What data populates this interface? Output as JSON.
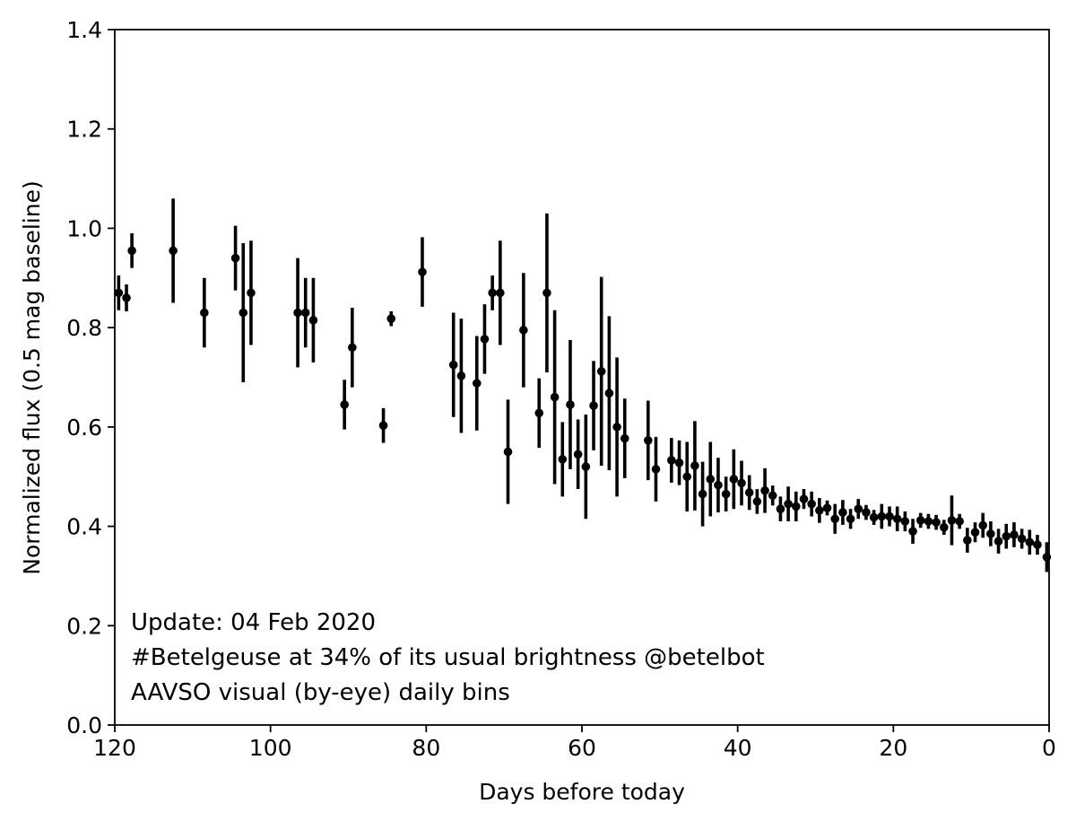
{
  "chart_data": {
    "type": "scatter",
    "title": "",
    "xlabel": "Days before today",
    "ylabel": "Normalized flux (0.5 mag baseline)",
    "xlim": [
      120,
      0
    ],
    "ylim": [
      0.0,
      1.4
    ],
    "x_inverted": true,
    "x_ticks": [
      120,
      100,
      80,
      60,
      40,
      20,
      0
    ],
    "y_ticks": [
      0.0,
      0.2,
      0.4,
      0.6,
      0.8,
      1.0,
      1.2,
      1.4
    ],
    "x_tick_labels": [
      "120",
      "100",
      "80",
      "60",
      "40",
      "20",
      "0"
    ],
    "y_tick_labels": [
      "0.0",
      "0.2",
      "0.4",
      "0.6",
      "0.8",
      "1.0",
      "1.2",
      "1.4"
    ],
    "grid": false,
    "marker_color": "#000000",
    "annotations": [
      "Update: 04 Feb 2020",
      "#Betelgeuse at 34% of its usual brightness @betelbot",
      "AAVSO visual (by-eye) daily bins"
    ],
    "series": [
      {
        "x": [
          119.5,
          118.5,
          117.8,
          112.5,
          108.5,
          104.5,
          103.5,
          102.5,
          96.5,
          95.5,
          94.5,
          90.5,
          89.5,
          85.5,
          84.5,
          80.5,
          76.5,
          75.5,
          73.5,
          72.5,
          71.5,
          70.5,
          69.5,
          67.5,
          65.5,
          64.5,
          63.5,
          62.5,
          61.5,
          60.5,
          59.5,
          58.5,
          57.5,
          56.5,
          55.5,
          54.5,
          51.5,
          50.5,
          48.5,
          47.5,
          46.5,
          45.5,
          44.5,
          43.5,
          42.5,
          41.5,
          40.5,
          39.5,
          38.5,
          37.5,
          36.5,
          35.5,
          34.5,
          33.5,
          32.5,
          31.5,
          30.5,
          29.5,
          28.5,
          27.5,
          26.5,
          25.5,
          24.5,
          23.5,
          22.5,
          21.5,
          20.5,
          19.5,
          18.5,
          17.5,
          16.5,
          15.5,
          14.5,
          13.5,
          12.5,
          11.5,
          10.5,
          9.5,
          8.5,
          7.5,
          6.5,
          5.5,
          4.5,
          3.5,
          2.5,
          1.5,
          0.3
        ],
        "y": [
          0.87,
          0.86,
          0.955,
          0.955,
          0.83,
          0.94,
          0.83,
          0.87,
          0.83,
          0.83,
          0.815,
          0.645,
          0.76,
          0.603,
          0.818,
          0.912,
          0.725,
          0.703,
          0.688,
          0.777,
          0.87,
          0.87,
          0.55,
          0.795,
          0.628,
          0.87,
          0.66,
          0.535,
          0.645,
          0.545,
          0.52,
          0.643,
          0.712,
          0.668,
          0.6,
          0.577,
          0.573,
          0.515,
          0.533,
          0.528,
          0.5,
          0.522,
          0.465,
          0.495,
          0.483,
          0.465,
          0.495,
          0.487,
          0.468,
          0.45,
          0.472,
          0.462,
          0.435,
          0.445,
          0.44,
          0.455,
          0.445,
          0.432,
          0.437,
          0.415,
          0.428,
          0.415,
          0.435,
          0.428,
          0.418,
          0.42,
          0.42,
          0.415,
          0.41,
          0.39,
          0.412,
          0.41,
          0.408,
          0.398,
          0.412,
          0.41,
          0.372,
          0.388,
          0.402,
          0.385,
          0.37,
          0.38,
          0.383,
          0.375,
          0.368,
          0.363,
          0.338
        ],
        "yerr": [
          0.035,
          0.027,
          0.035,
          0.105,
          0.07,
          0.065,
          0.14,
          0.105,
          0.11,
          0.07,
          0.085,
          0.05,
          0.08,
          0.035,
          0.015,
          0.07,
          0.105,
          0.115,
          0.095,
          0.07,
          0.035,
          0.105,
          0.105,
          0.115,
          0.07,
          0.16,
          0.175,
          0.075,
          0.13,
          0.07,
          0.105,
          0.09,
          0.19,
          0.155,
          0.14,
          0.08,
          0.08,
          0.065,
          0.045,
          0.045,
          0.07,
          0.09,
          0.065,
          0.075,
          0.055,
          0.035,
          0.06,
          0.045,
          0.035,
          0.025,
          0.045,
          0.02,
          0.025,
          0.035,
          0.03,
          0.02,
          0.025,
          0.025,
          0.015,
          0.03,
          0.025,
          0.02,
          0.02,
          0.015,
          0.015,
          0.025,
          0.02,
          0.025,
          0.02,
          0.025,
          0.015,
          0.015,
          0.015,
          0.015,
          0.05,
          0.015,
          0.025,
          0.02,
          0.025,
          0.025,
          0.025,
          0.025,
          0.025,
          0.02,
          0.025,
          0.02,
          0.03
        ]
      }
    ]
  }
}
